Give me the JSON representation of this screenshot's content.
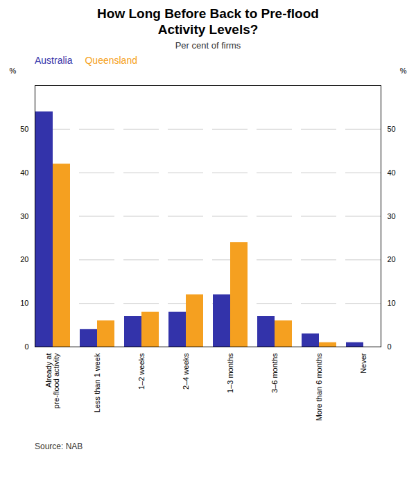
{
  "chart_data": {
    "type": "bar",
    "title": "How Long Before Back to Pre-flood\nActivity Levels?",
    "subtitle": "Per cent of firms",
    "caption": "Source: NAB",
    "ylabel": "%",
    "y2label": "%",
    "categories": [
      "Already at\npre-flood activity",
      "Less than 1 week",
      "1–2 weeks",
      "2–4 weeks",
      "1–3 months",
      "3–6 months",
      "More than 6 months",
      "Never"
    ],
    "series": [
      {
        "name": "Australia",
        "color": "#3333aa",
        "values": [
          54,
          4,
          7,
          8,
          12,
          7,
          3,
          1
        ]
      },
      {
        "name": "Queensland",
        "color": "#f5a020",
        "values": [
          42,
          6,
          8,
          12,
          24,
          6,
          1,
          0
        ]
      }
    ],
    "ylim": [
      0,
      60
    ],
    "yticks": [
      0,
      10,
      20,
      30,
      40,
      50
    ],
    "y2lim": [
      0,
      60
    ],
    "y2ticks": [
      0,
      10,
      20,
      30,
      40,
      50
    ],
    "grid": true,
    "legend": "upper left"
  }
}
